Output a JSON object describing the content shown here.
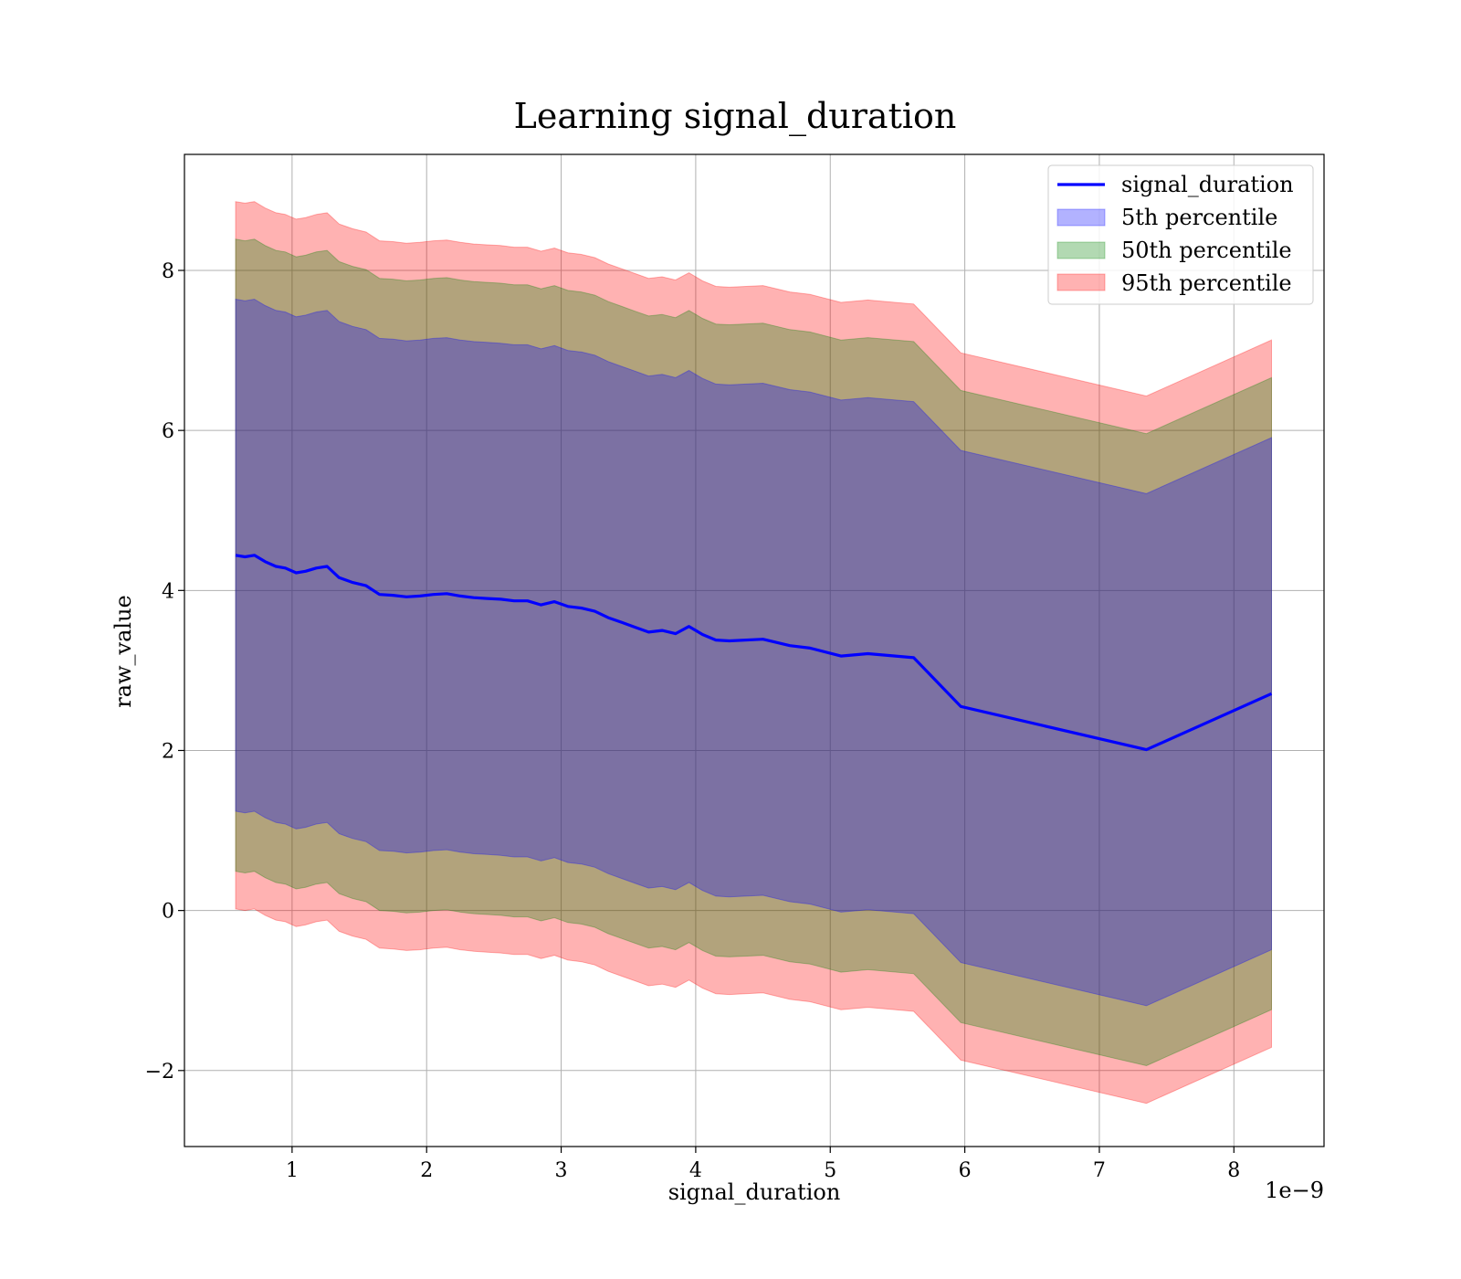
{
  "chart_data": {
    "type": "area",
    "title": "Learning signal_duration",
    "xlabel": "signal_duration",
    "ylabel": "raw_value",
    "x_offset_label": "1e−9",
    "xlim": [
      0.2,
      8.67
    ],
    "ylim": [
      -2.95,
      9.45
    ],
    "x_ticks": [
      1,
      2,
      3,
      4,
      5,
      6,
      7,
      8
    ],
    "x_tick_labels": [
      "1",
      "2",
      "3",
      "4",
      "5",
      "6",
      "7",
      "8"
    ],
    "y_ticks": [
      -2,
      0,
      2,
      4,
      6,
      8
    ],
    "y_tick_labels": [
      "−2",
      "0",
      "2",
      "4",
      "6",
      "8"
    ],
    "grid": true,
    "legend_position": "top-right",
    "colors": {
      "line": "#0000ff",
      "p5": "#0000ff",
      "p50": "#008000",
      "p95": "#ff0000"
    },
    "x": [
      0.58,
      0.65,
      0.72,
      0.8,
      0.88,
      0.95,
      1.03,
      1.1,
      1.18,
      1.26,
      1.35,
      1.45,
      1.55,
      1.65,
      1.75,
      1.85,
      1.95,
      2.05,
      2.15,
      2.25,
      2.35,
      2.45,
      2.55,
      2.65,
      2.75,
      2.85,
      2.95,
      3.05,
      3.15,
      3.25,
      3.35,
      3.45,
      3.55,
      3.65,
      3.75,
      3.85,
      3.95,
      4.05,
      4.15,
      4.25,
      4.5,
      4.7,
      4.85,
      5.08,
      5.28,
      5.62,
      5.97,
      7.35,
      8.28
    ],
    "series": [
      {
        "name": "signal_duration",
        "values": [
          4.44,
          4.42,
          4.44,
          4.36,
          4.3,
          4.28,
          4.22,
          4.24,
          4.28,
          4.3,
          4.16,
          4.1,
          4.06,
          3.95,
          3.94,
          3.92,
          3.93,
          3.95,
          3.96,
          3.93,
          3.91,
          3.9,
          3.89,
          3.87,
          3.87,
          3.82,
          3.86,
          3.8,
          3.78,
          3.74,
          3.66,
          3.6,
          3.54,
          3.48,
          3.5,
          3.46,
          3.55,
          3.45,
          3.38,
          3.37,
          3.39,
          3.31,
          3.28,
          3.18,
          3.21,
          3.16,
          2.55,
          2.01,
          2.71
        ]
      },
      {
        "name": "5th percentile",
        "half_width": 3.2
      },
      {
        "name": "50th percentile",
        "half_width": 3.95
      },
      {
        "name": "95th percentile",
        "half_width": 4.42
      }
    ]
  }
}
